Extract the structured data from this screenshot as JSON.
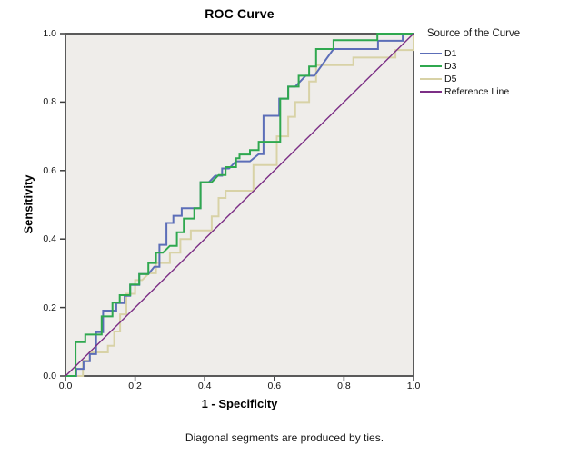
{
  "chart_data": {
    "type": "line",
    "subtype": "roc-step-curves",
    "title": "ROC Curve",
    "xlabel": "1 - Specificity",
    "ylabel": "Sensitivity",
    "footnote": "Diagonal segments are produced by ties.",
    "legend_title": "Source of the Curve",
    "xlim": [
      0,
      1
    ],
    "ylim": [
      0,
      1
    ],
    "x_ticks": [
      0,
      0.2,
      0.4,
      0.6,
      0.8,
      1.0
    ],
    "y_ticks": [
      0,
      0.2,
      0.4,
      0.6,
      0.8,
      1.0
    ],
    "x_tick_labels": [
      "0.0",
      "0.2",
      "0.4",
      "0.6",
      "0.8",
      "1.0"
    ],
    "y_tick_labels": [
      "0.0",
      "0.2",
      "0.4",
      "0.6",
      "0.8",
      "1.0"
    ],
    "grid": false,
    "legend_position": "right",
    "plot_bg": "#EFEDEA",
    "frame_color": "#5A5A5A",
    "tick_color": "#3C3C3C",
    "series": [
      {
        "name": "D1",
        "color": "#5C6EB8",
        "width": 2,
        "points": [
          [
            0,
            0
          ],
          [
            0.031,
            0
          ],
          [
            0.031,
            0.021
          ],
          [
            0.052,
            0.021
          ],
          [
            0.052,
            0.043
          ],
          [
            0.07,
            0.043
          ],
          [
            0.07,
            0.064
          ],
          [
            0.088,
            0.064
          ],
          [
            0.088,
            0.128
          ],
          [
            0.108,
            0.128
          ],
          [
            0.108,
            0.191
          ],
          [
            0.146,
            0.191
          ],
          [
            0.146,
            0.213
          ],
          [
            0.17,
            0.213
          ],
          [
            0.17,
            0.234
          ],
          [
            0.186,
            0.234
          ],
          [
            0.186,
            0.266
          ],
          [
            0.212,
            0.266
          ],
          [
            0.212,
            0.298
          ],
          [
            0.238,
            0.298
          ],
          [
            0.255,
            0.319
          ],
          [
            0.27,
            0.319
          ],
          [
            0.27,
            0.383
          ],
          [
            0.29,
            0.383
          ],
          [
            0.29,
            0.447
          ],
          [
            0.31,
            0.447
          ],
          [
            0.31,
            0.468
          ],
          [
            0.334,
            0.468
          ],
          [
            0.334,
            0.49
          ],
          [
            0.388,
            0.49
          ],
          [
            0.388,
            0.566
          ],
          [
            0.412,
            0.566
          ],
          [
            0.43,
            0.585
          ],
          [
            0.45,
            0.585
          ],
          [
            0.45,
            0.606
          ],
          [
            0.47,
            0.606
          ],
          [
            0.49,
            0.627
          ],
          [
            0.53,
            0.627
          ],
          [
            0.555,
            0.648
          ],
          [
            0.569,
            0.648
          ],
          [
            0.569,
            0.76
          ],
          [
            0.614,
            0.76
          ],
          [
            0.614,
            0.81
          ],
          [
            0.64,
            0.81
          ],
          [
            0.64,
            0.845
          ],
          [
            0.66,
            0.845
          ],
          [
            0.69,
            0.877
          ],
          [
            0.715,
            0.877
          ],
          [
            0.77,
            0.955
          ],
          [
            0.898,
            0.955
          ],
          [
            0.898,
            0.979
          ],
          [
            0.969,
            0.979
          ],
          [
            0.969,
            1.0
          ],
          [
            1.0,
            1.0
          ]
        ]
      },
      {
        "name": "D3",
        "color": "#2FA84F",
        "width": 2,
        "points": [
          [
            0,
            0
          ],
          [
            0.029,
            0
          ],
          [
            0.029,
            0.099
          ],
          [
            0.057,
            0.099
          ],
          [
            0.057,
            0.121
          ],
          [
            0.104,
            0.121
          ],
          [
            0.104,
            0.174
          ],
          [
            0.135,
            0.174
          ],
          [
            0.135,
            0.214
          ],
          [
            0.156,
            0.214
          ],
          [
            0.156,
            0.236
          ],
          [
            0.186,
            0.236
          ],
          [
            0.186,
            0.267
          ],
          [
            0.212,
            0.267
          ],
          [
            0.212,
            0.298
          ],
          [
            0.238,
            0.298
          ],
          [
            0.238,
            0.33
          ],
          [
            0.26,
            0.33
          ],
          [
            0.26,
            0.36
          ],
          [
            0.28,
            0.36
          ],
          [
            0.3,
            0.38
          ],
          [
            0.32,
            0.38
          ],
          [
            0.32,
            0.42
          ],
          [
            0.34,
            0.42
          ],
          [
            0.34,
            0.46
          ],
          [
            0.37,
            0.46
          ],
          [
            0.37,
            0.49
          ],
          [
            0.388,
            0.49
          ],
          [
            0.388,
            0.566
          ],
          [
            0.42,
            0.566
          ],
          [
            0.44,
            0.587
          ],
          [
            0.46,
            0.587
          ],
          [
            0.46,
            0.61
          ],
          [
            0.49,
            0.61
          ],
          [
            0.49,
            0.636
          ],
          [
            0.5,
            0.636
          ],
          [
            0.5,
            0.647
          ],
          [
            0.53,
            0.647
          ],
          [
            0.53,
            0.66
          ],
          [
            0.555,
            0.66
          ],
          [
            0.555,
            0.684
          ],
          [
            0.617,
            0.684
          ],
          [
            0.617,
            0.81
          ],
          [
            0.64,
            0.81
          ],
          [
            0.64,
            0.845
          ],
          [
            0.67,
            0.845
          ],
          [
            0.67,
            0.877
          ],
          [
            0.7,
            0.877
          ],
          [
            0.7,
            0.904
          ],
          [
            0.72,
            0.904
          ],
          [
            0.72,
            0.955
          ],
          [
            0.77,
            0.955
          ],
          [
            0.77,
            0.981
          ],
          [
            0.896,
            0.981
          ],
          [
            0.896,
            1.0
          ],
          [
            1.0,
            1.0
          ]
        ]
      },
      {
        "name": "D5",
        "color": "#D8D2A6",
        "width": 2,
        "points": [
          [
            0,
            0
          ],
          [
            0.05,
            0
          ],
          [
            0.05,
            0.045
          ],
          [
            0.07,
            0.045
          ],
          [
            0.07,
            0.069
          ],
          [
            0.122,
            0.069
          ],
          [
            0.122,
            0.088
          ],
          [
            0.14,
            0.088
          ],
          [
            0.14,
            0.13
          ],
          [
            0.157,
            0.13
          ],
          [
            0.157,
            0.18
          ],
          [
            0.175,
            0.18
          ],
          [
            0.175,
            0.24
          ],
          [
            0.2,
            0.24
          ],
          [
            0.2,
            0.28
          ],
          [
            0.22,
            0.28
          ],
          [
            0.24,
            0.3
          ],
          [
            0.26,
            0.3
          ],
          [
            0.26,
            0.33
          ],
          [
            0.3,
            0.33
          ],
          [
            0.3,
            0.36
          ],
          [
            0.33,
            0.36
          ],
          [
            0.33,
            0.4
          ],
          [
            0.36,
            0.4
          ],
          [
            0.36,
            0.425
          ],
          [
            0.42,
            0.425
          ],
          [
            0.42,
            0.466
          ],
          [
            0.44,
            0.466
          ],
          [
            0.44,
            0.52
          ],
          [
            0.46,
            0.52
          ],
          [
            0.46,
            0.541
          ],
          [
            0.54,
            0.541
          ],
          [
            0.54,
            0.616
          ],
          [
            0.607,
            0.616
          ],
          [
            0.607,
            0.7
          ],
          [
            0.64,
            0.7
          ],
          [
            0.64,
            0.757
          ],
          [
            0.66,
            0.757
          ],
          [
            0.66,
            0.8
          ],
          [
            0.7,
            0.8
          ],
          [
            0.7,
            0.86
          ],
          [
            0.72,
            0.86
          ],
          [
            0.72,
            0.908
          ],
          [
            0.827,
            0.908
          ],
          [
            0.827,
            0.93
          ],
          [
            0.948,
            0.93
          ],
          [
            0.948,
            0.952
          ],
          [
            1.0,
            0.952
          ],
          [
            1.0,
            1.0
          ]
        ]
      },
      {
        "name": "Reference Line",
        "color": "#7C2F86",
        "width": 1.4,
        "points": [
          [
            0,
            0
          ],
          [
            1,
            1
          ]
        ]
      }
    ]
  }
}
